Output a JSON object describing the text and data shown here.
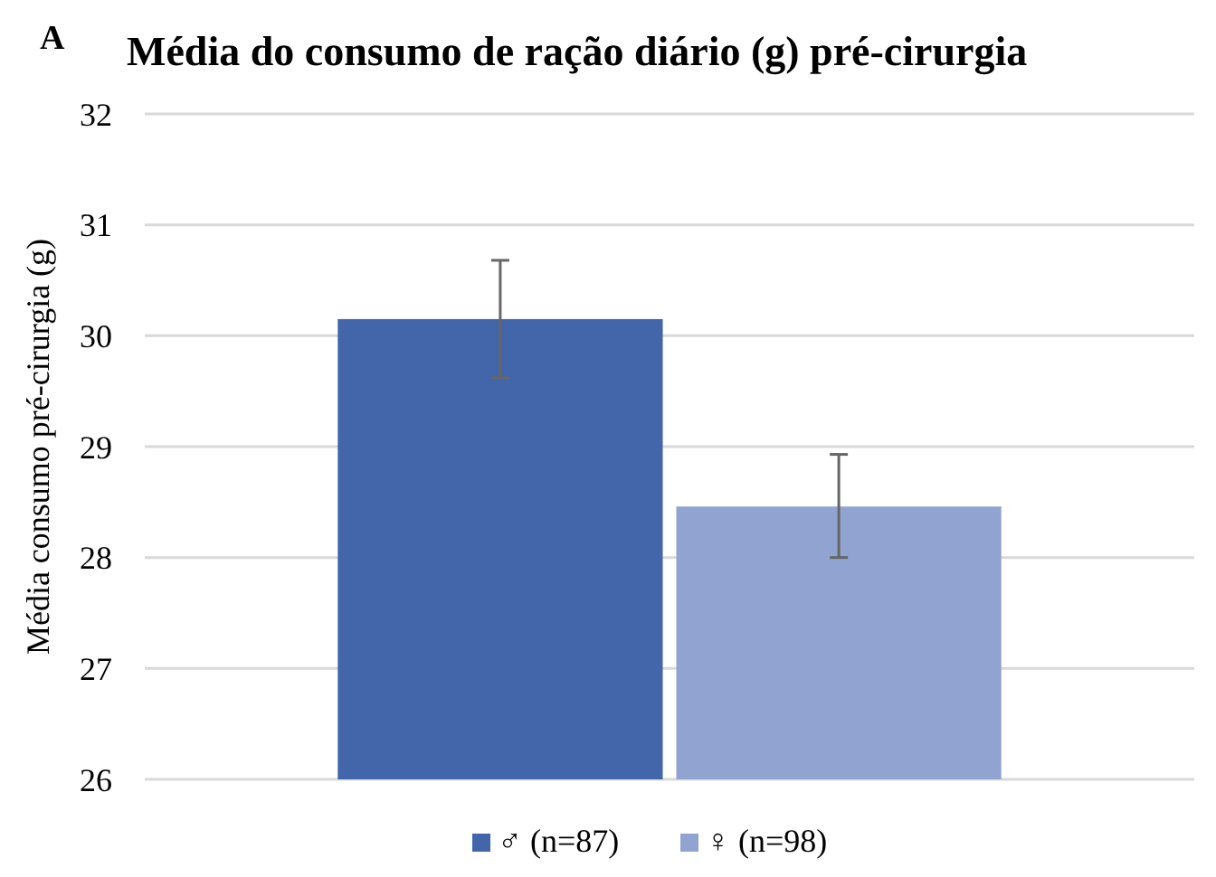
{
  "chart_data": {
    "type": "bar",
    "title": "Média do consumo de ração diário (g) pré-cirurgia",
    "ylabel": "Média consumo pré-cirurgia (g)",
    "annotations": [
      "A"
    ],
    "categories": [
      null
    ],
    "series": [
      {
        "name": "♂  (n=87)",
        "color": "#4366ab",
        "values": [
          30.15
        ],
        "errors": [
          [
            29.62,
            30.68
          ]
        ]
      },
      {
        "name": "♀ (n=98)",
        "color": "#91a3d0",
        "values": [
          28.46
        ],
        "errors": [
          [
            28.0,
            28.93
          ]
        ]
      }
    ],
    "ylim": [
      26,
      32
    ],
    "yticks": [
      26,
      27,
      28,
      29,
      30,
      31,
      32
    ],
    "grid": "y",
    "legend": "bottom"
  }
}
